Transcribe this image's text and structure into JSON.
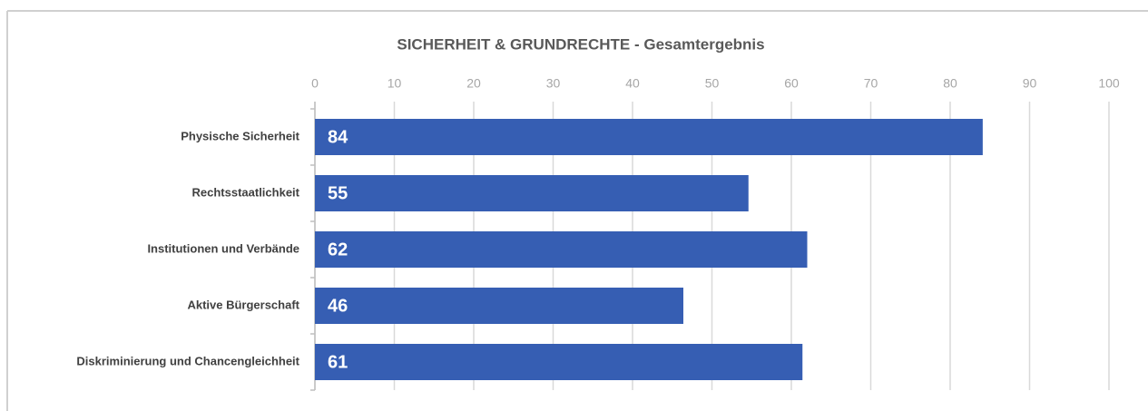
{
  "chart_data": {
    "type": "hbar",
    "title": "SICHERHEIT & GRUNDRECHTE - Gesamtergebnis",
    "categories": [
      "Physische Sicherheit",
      "Rechtsstaatlichkeit",
      "Institutionen und Verbände",
      "Aktive Bürgerschaft",
      "Diskriminierung und Chancengleichheit"
    ],
    "values": [
      84.1,
      54.6,
      62,
      46.4,
      61.4
    ],
    "value_labels": [
      "84",
      "55",
      "62",
      "46",
      "61"
    ],
    "color": "#365eb3",
    "xlim": [
      0,
      100
    ],
    "xticks": [
      0,
      10,
      20,
      30,
      40,
      50,
      60,
      70,
      80,
      90,
      100
    ],
    "grid": true
  }
}
